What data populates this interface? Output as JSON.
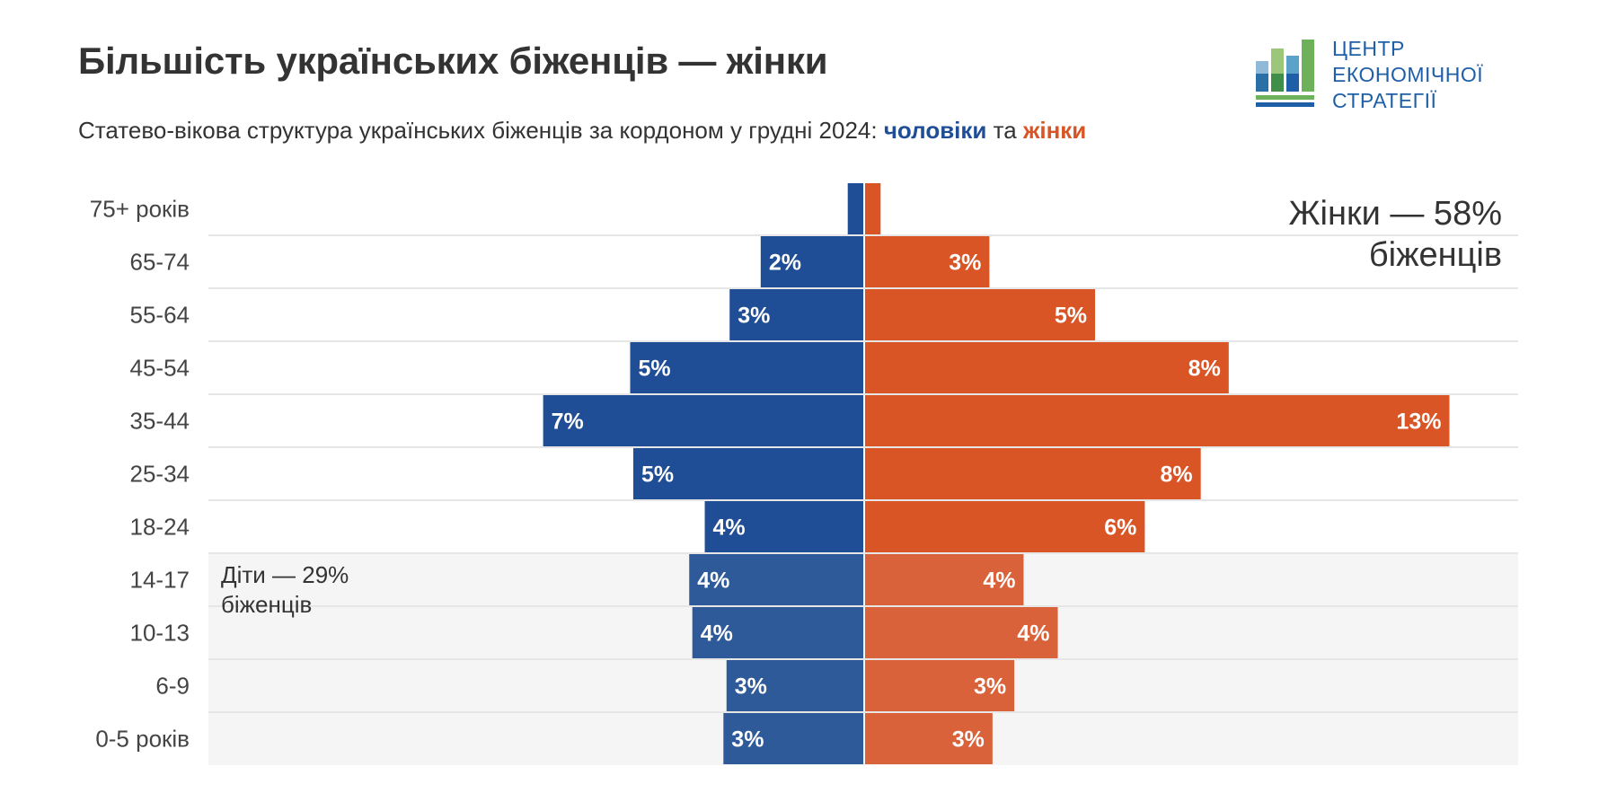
{
  "header": {
    "title": "Більшість українських біженців — жінки",
    "subtitle_prefix": "Статево-вікова структура українських біженців за кордоном у грудні 2024: ",
    "subtitle_men": "чоловіки",
    "subtitle_and": " та ",
    "subtitle_women": "жінки"
  },
  "logo": {
    "line1": "ЦЕНТР",
    "line2": "ЕКОНОМІЧНОЇ",
    "line3": "СТРАТЕГІЇ"
  },
  "colors": {
    "men": "#1f4e96",
    "women": "#d95525",
    "men_children": "#2e5a99",
    "women_children": "#d9623a",
    "children_bg": "#f5f5f5",
    "grid": "#e6e6e6"
  },
  "chart_data": {
    "type": "bar",
    "subtype": "population-pyramid",
    "categories": [
      "75+ років",
      "65-74",
      "55-64",
      "45-54",
      "35-44",
      "25-34",
      "18-24",
      "14-17",
      "10-13",
      "6-9",
      "0-5 років"
    ],
    "series": [
      {
        "name": "чоловіки",
        "values": [
          0.5,
          3.3,
          4.3,
          7.5,
          10.3,
          7.4,
          5.1,
          5.6,
          5.5,
          4.4,
          4.5
        ],
        "labels": [
          "",
          "2%",
          "3%",
          "5%",
          "7%",
          "5%",
          "4%",
          "4%",
          "4%",
          "3%",
          "3%"
        ]
      },
      {
        "name": "жінки",
        "values": [
          0.5,
          4.0,
          7.4,
          11.7,
          18.8,
          10.8,
          9.0,
          5.1,
          6.2,
          4.8,
          4.1
        ],
        "labels": [
          "",
          "3%",
          "5%",
          "8%",
          "13%",
          "8%",
          "6%",
          "4%",
          "4%",
          "3%",
          "3%"
        ]
      }
    ],
    "children_categories": [
      "14-17",
      "10-13",
      "6-9",
      "0-5 років"
    ],
    "annotations": {
      "women": "Жінки — 58% біженців",
      "women_line1": "Жінки — 58%",
      "women_line2": "біженців",
      "children_line1": "Діти — 29%",
      "children_line2": "біженців"
    },
    "title": "Більшість українських біженців — жінки",
    "xlabel": "",
    "ylabel": ""
  }
}
